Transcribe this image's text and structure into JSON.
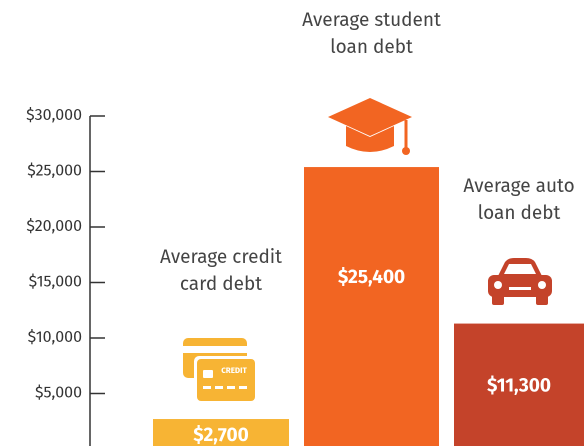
{
  "chart_data": {
    "type": "bar",
    "categories": [
      "Average credit card debt",
      "Average student loan debt",
      "Average auto loan debt"
    ],
    "values": [
      2700,
      25400,
      11300
    ],
    "value_labels": [
      "$2,700",
      "$25,400",
      "$11,300"
    ],
    "colors": [
      "#f7b434",
      "#f26522",
      "#c4432a"
    ],
    "ylim": [
      0,
      30000
    ],
    "yticks": [
      {
        "value": 5000,
        "label": "$5,000"
      },
      {
        "value": 10000,
        "label": "$10,000"
      },
      {
        "value": 15000,
        "label": "$15,000"
      },
      {
        "value": 20000,
        "label": "$20,000"
      },
      {
        "value": 25000,
        "label": "$25,000"
      },
      {
        "value": 30000,
        "label": "$30,000"
      }
    ]
  }
}
